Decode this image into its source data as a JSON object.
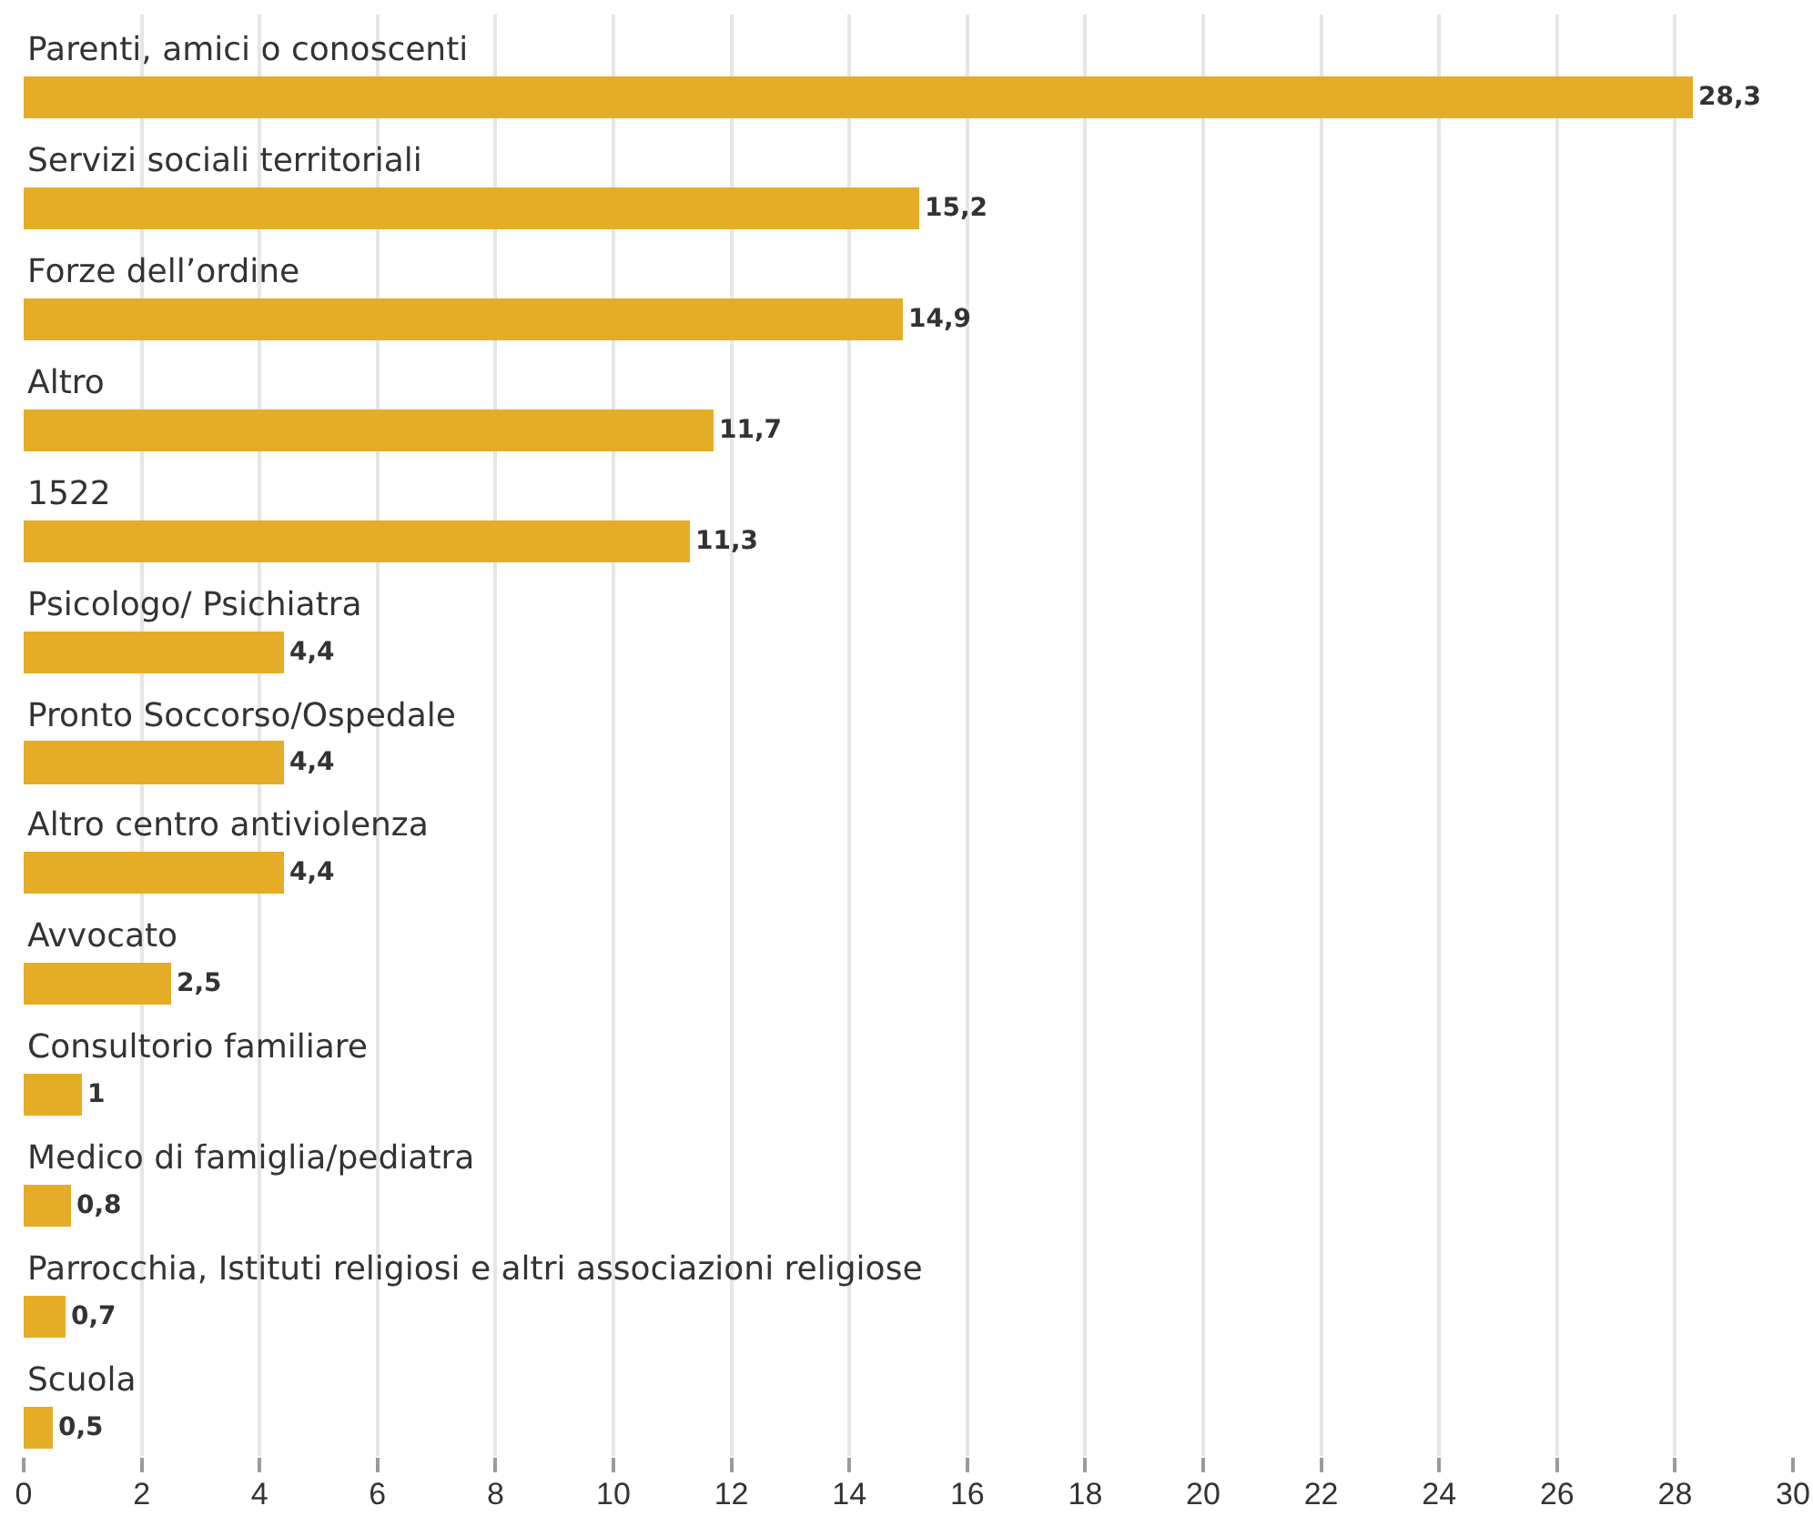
{
  "chart_data": {
    "type": "bar",
    "orientation": "horizontal",
    "categories": [
      "Parenti, amici o conoscenti",
      "Servizi sociali territoriali",
      "Forze dell’ordine",
      "Altro",
      "1522",
      "Psicologo/ Psichiatra",
      "Pronto Soccorso/Ospedale",
      "Altro centro antiviolenza",
      "Avvocato",
      "Consultorio familiare",
      "Medico di famiglia/pediatra",
      "Parrocchia, Istituti religiosi e altri associazioni religiose",
      "Scuola"
    ],
    "values": [
      28.3,
      15.2,
      14.9,
      11.7,
      11.3,
      4.4,
      4.4,
      4.4,
      2.5,
      1,
      0.8,
      0.7,
      0.5
    ],
    "value_labels": [
      "28,3",
      "15,2",
      "14,9",
      "11,7",
      "11,3",
      "4,4",
      "4,4",
      "4,4",
      "2,5",
      "1",
      "0,8",
      "0,7",
      "0,5"
    ],
    "color": "#e5ac28",
    "xlim": [
      0,
      30
    ],
    "xticks": [
      0,
      2,
      4,
      6,
      8,
      10,
      12,
      14,
      16,
      18,
      20,
      22,
      24,
      26,
      28,
      30
    ],
    "grid": "x"
  }
}
